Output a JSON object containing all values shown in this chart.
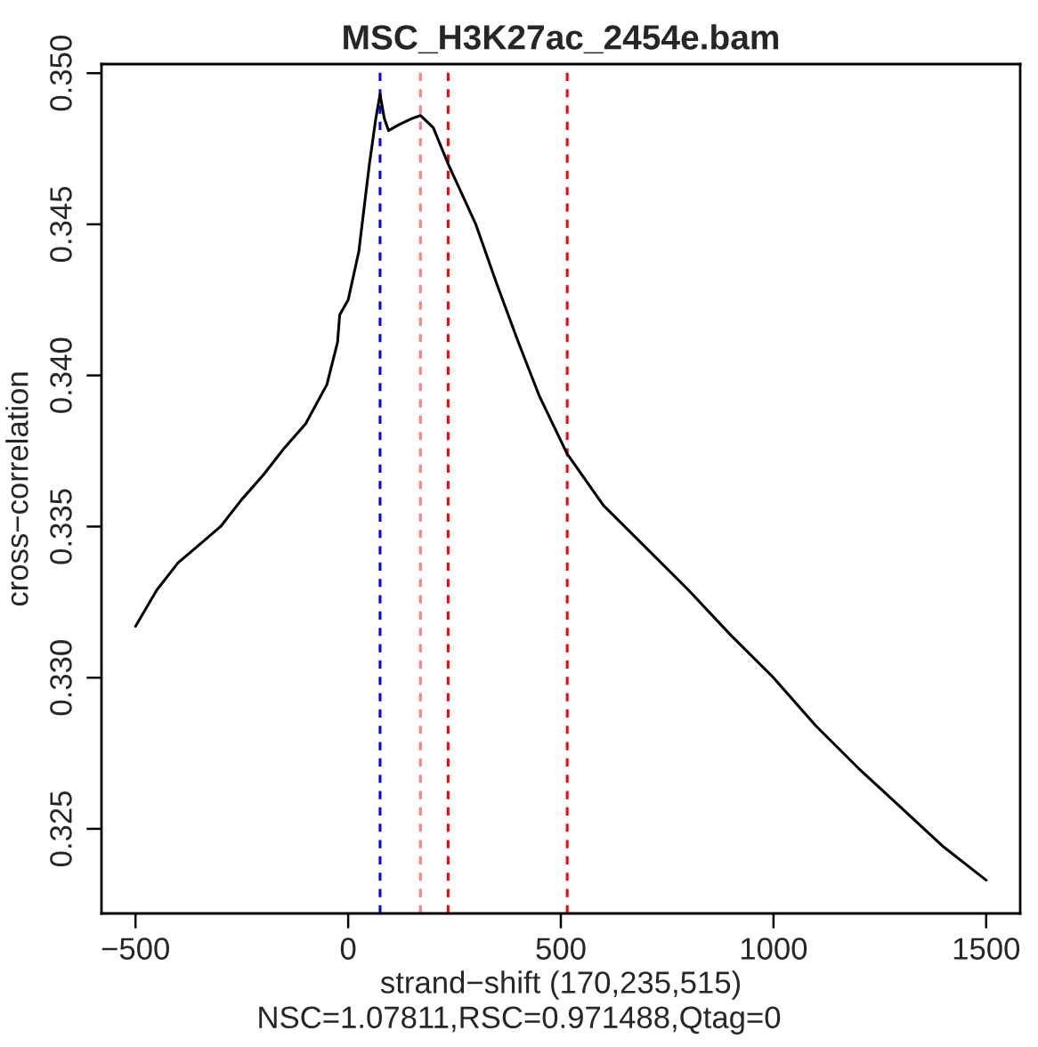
{
  "chart_data": {
    "type": "line",
    "title": "MSC_H3K27ac_2454e.bam",
    "xlabel": "strand−shift (170,235,515)",
    "ylabel": "cross−correlation",
    "annotations": [
      "NSC=1.07811,RSC=0.971488,Qtag=0"
    ],
    "series": [
      {
        "color": "#000000",
        "x": [
          -500,
          -450,
          -400,
          -350,
          -300,
          -250,
          -200,
          -150,
          -100,
          -50,
          -25,
          -20,
          0,
          25,
          50,
          65,
          75,
          85,
          95,
          120,
          150,
          170,
          200,
          235,
          300,
          350,
          400,
          450,
          515,
          600,
          700,
          800,
          900,
          1000,
          1100,
          1200,
          1300,
          1400,
          1500
        ],
        "values": [
          0.3317,
          0.3329,
          0.3338,
          0.3344,
          0.335,
          0.3359,
          0.3367,
          0.3376,
          0.3384,
          0.3397,
          0.3411,
          0.342,
          0.3425,
          0.3441,
          0.347,
          0.3485,
          0.3493,
          0.3485,
          0.3481,
          0.3483,
          0.3485,
          0.3486,
          0.3482,
          0.347,
          0.345,
          0.343,
          0.3411,
          0.3393,
          0.3374,
          0.3357,
          0.3343,
          0.3329,
          0.3314,
          0.33,
          0.3284,
          0.327,
          0.3257,
          0.3244,
          0.3233
        ]
      }
    ],
    "ref_lines": [
      {
        "axis": "x",
        "value": 75,
        "color": "#0000ff",
        "line_style": "dashed"
      },
      {
        "axis": "x",
        "value": 170,
        "color": "#ff7f7f",
        "line_style": "dashed"
      },
      {
        "axis": "x",
        "value": 235,
        "color": "#ff0000",
        "line_style": "dashed"
      },
      {
        "axis": "x",
        "value": 515,
        "color": "#ff0000",
        "line_style": "dashed"
      }
    ],
    "xlim": [
      -580,
      1580
    ],
    "xticks": [
      -500,
      0,
      500,
      1000,
      1500
    ],
    "ylim": [
      0.3222,
      0.3503
    ],
    "yticks": [
      {
        "value": 0.325,
        "label": "0.325"
      },
      {
        "value": 0.33,
        "label": "0.330"
      },
      {
        "value": 0.335,
        "label": "0.335"
      },
      {
        "value": 0.34,
        "label": "0.340"
      },
      {
        "value": 0.345,
        "label": "0.345"
      },
      {
        "value": 0.35,
        "label": "0.350"
      }
    ],
    "grid": false,
    "marker": "none",
    "line_style": "solid"
  }
}
